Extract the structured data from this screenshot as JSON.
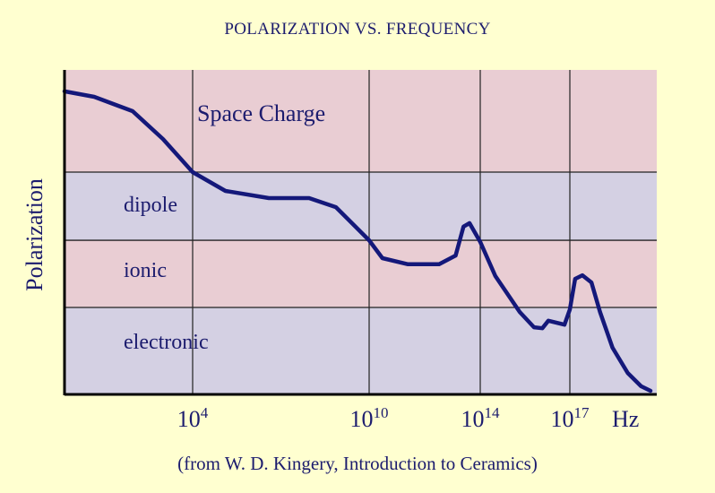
{
  "chart_data": {
    "type": "line",
    "title": "POLARIZATION VS.  FREQUENCY",
    "xlabel": "Hz",
    "ylabel": "Polarization",
    "x_scale": "log",
    "xlim": [
      0.44,
      7.6e+19
    ],
    "ylim": [
      0,
      1
    ],
    "x_ticks": [
      {
        "value": 10000.0,
        "base": "10",
        "exp": "4"
      },
      {
        "value": 10000000000.0,
        "base": "10",
        "exp": "10"
      },
      {
        "value": 100000000000000.0,
        "base": "10",
        "exp": "14"
      },
      {
        "value": 1e+17,
        "base": "10",
        "exp": "17"
      }
    ],
    "grid": true,
    "regions": [
      {
        "label": "Space Charge",
        "from": 0.685,
        "to": 1.0,
        "color": "#E9CDD3"
      },
      {
        "label": "dipole",
        "from": 0.475,
        "to": 0.685,
        "color": "#D4D0E3"
      },
      {
        "label": "ionic",
        "from": 0.268,
        "to": 0.475,
        "color": "#E9CDD3"
      },
      {
        "label": "electronic",
        "from": 0.0,
        "to": 0.268,
        "color": "#D4D0E3"
      }
    ],
    "series": [
      {
        "color": "#14187A",
        "x": [
          0.44,
          4.5,
          91,
          980,
          10000.0,
          130000.0,
          3900000.0,
          91000000.0,
          740000000.0,
          10000000000.0,
          30000000000.0,
          250000000000.0,
          3300000000000.0,
          13000000000000.0,
          25000000000000.0,
          41000000000000.0,
          100000000000000.0,
          320000000000000.0,
          2100000000000000.0,
          6300000000000000.0,
          1.2e+16,
          1.9e+16,
          6.6e+16,
          1e+17,
          1.5e+17,
          2.6e+17,
          5.2e+17,
          1e+18,
          2.6e+18,
          8.3e+18,
          2.3e+19,
          4.7e+19
        ],
        "y": [
          0.934,
          0.917,
          0.873,
          0.787,
          0.685,
          0.627,
          0.605,
          0.605,
          0.577,
          0.475,
          0.42,
          0.401,
          0.401,
          0.428,
          0.517,
          0.528,
          0.47,
          0.365,
          0.254,
          0.207,
          0.204,
          0.227,
          0.215,
          0.262,
          0.356,
          0.367,
          0.345,
          0.254,
          0.144,
          0.066,
          0.025,
          0.011
        ]
      }
    ],
    "caption": "(from W. D. Kingery, Introduction to Ceramics)"
  }
}
